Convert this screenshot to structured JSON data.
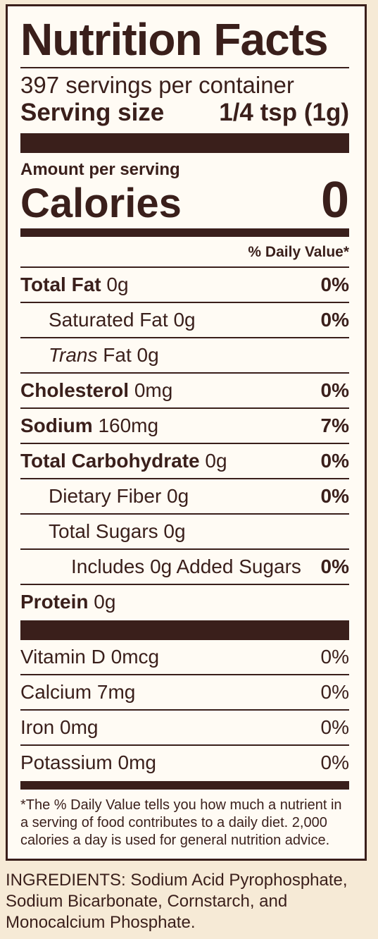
{
  "title": "Nutrition Facts",
  "servings_per_container": "397 servings per container",
  "serving_size": {
    "label": "Serving size",
    "value": "1/4 tsp (1g)"
  },
  "amount_per_serving": "Amount per serving",
  "calories": {
    "label": "Calories",
    "value": "0"
  },
  "daily_value_header": "% Daily Value*",
  "nutrients": [
    {
      "name": "Total Fat",
      "amount": "0g",
      "dv": "0%"
    },
    {
      "name": "Saturated Fat",
      "amount": "0g",
      "dv": "0%"
    },
    {
      "name": "Trans",
      "amount": "Fat 0g",
      "dv": ""
    },
    {
      "name": "Cholesterol",
      "amount": "0mg",
      "dv": "0%"
    },
    {
      "name": "Sodium",
      "amount": "160mg",
      "dv": "7%"
    },
    {
      "name": "Total Carbohydrate",
      "amount": "0g",
      "dv": "0%"
    },
    {
      "name": "Dietary Fiber",
      "amount": "0g",
      "dv": "0%"
    },
    {
      "name": "Total Sugars",
      "amount": "0g",
      "dv": ""
    },
    {
      "name": "Includes 0g Added Sugars",
      "amount": "",
      "dv": "0%"
    },
    {
      "name": "Protein",
      "amount": "0g",
      "dv": ""
    }
  ],
  "vitamins": [
    {
      "text": "Vitamin D 0mcg",
      "dv": "0%"
    },
    {
      "text": "Calcium 7mg",
      "dv": "0%"
    },
    {
      "text": "Iron 0mg",
      "dv": "0%"
    },
    {
      "text": "Potassium 0mg",
      "dv": "0%"
    }
  ],
  "footnote": "*The % Daily Value tells you how much a nutrient in a serving of food contributes to a daily diet. 2,000 calories a day is used for general nutrition advice.",
  "ingredients": "INGREDIENTS: Sodium Acid Pyrophosphate, Sodium Bicarbonate, Cornstarch, and Monocalcium Phosphate."
}
